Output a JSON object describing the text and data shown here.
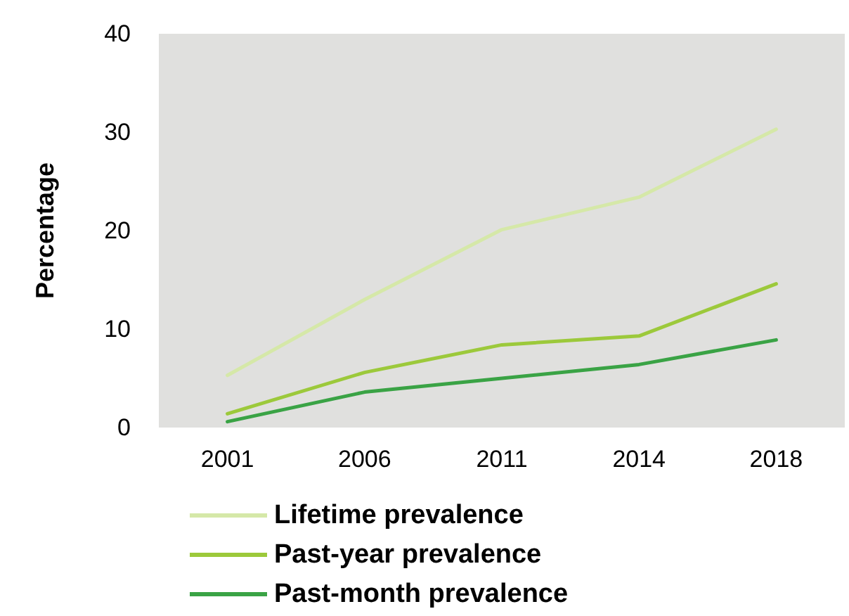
{
  "chart_data": {
    "type": "line",
    "ylabel": "Percentage",
    "categories": [
      "2001",
      "2006",
      "2011",
      "2014",
      "2018"
    ],
    "series": [
      {
        "name": "Lifetime prevalence",
        "color": "#d5e8a8",
        "values": [
          5.3,
          13,
          20.1,
          23.4,
          30.3
        ]
      },
      {
        "name": "Past-year prevalence",
        "color": "#9cc93b",
        "values": [
          1.4,
          5.6,
          8.4,
          9.3,
          14.6
        ]
      },
      {
        "name": "Past-month prevalence",
        "color": "#3aa345",
        "values": [
          0.6,
          3.6,
          5.0,
          6.4,
          8.9
        ]
      }
    ],
    "ylim": [
      0,
      40
    ],
    "yticks": [
      0,
      10,
      20,
      30,
      40
    ],
    "grid": false,
    "legend": "bottom",
    "marker": "none",
    "line_style": "solid"
  }
}
